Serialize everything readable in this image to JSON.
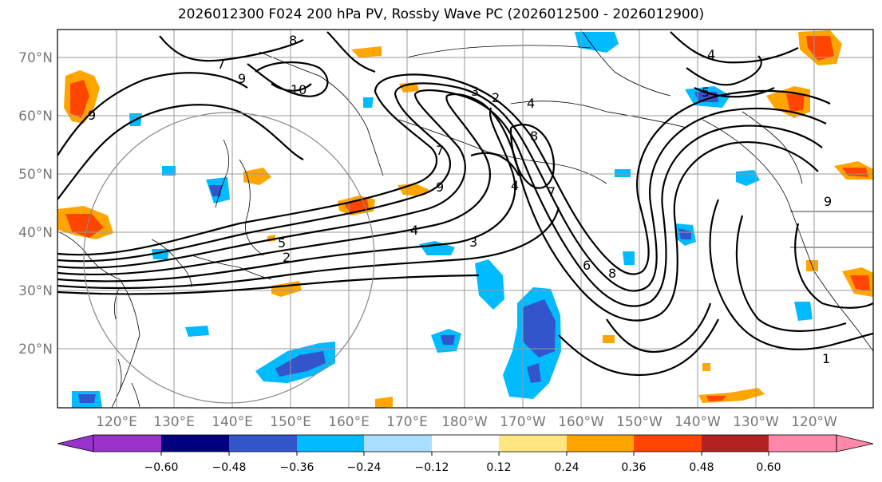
{
  "title": "2026012300 F024 200 hPa PV, Rossby Wave PC (2026012500 - 2026012900)",
  "lat_labels": [
    "70°N",
    "60°N",
    "50°N",
    "40°N",
    "30°N",
    "20°N"
  ],
  "lon_labels": [
    "120°E",
    "130°E",
    "140°E",
    "150°E",
    "160°E",
    "170°E",
    "180°W",
    "170°W",
    "160°W",
    "150°W",
    "140°W",
    "130°W",
    "120°W"
  ],
  "colorbar": {
    "colors": [
      "#9933cc",
      "#000080",
      "#3355cc",
      "#00bbff",
      "#aaddff",
      "#ffffff",
      "#ffe680",
      "#ffa500",
      "#ff4500",
      "#b22222",
      "#ff88aa"
    ],
    "labels": [
      "−0.60",
      "−0.48",
      "−0.36",
      "−0.24",
      "−0.12",
      "0.12",
      "0.24",
      "0.36",
      "0.48",
      "0.60"
    ]
  },
  "contour_labels": [
    "8",
    "7",
    "9",
    "10",
    "9",
    "7",
    "3",
    "2",
    "4",
    "4",
    "5",
    "8",
    "9",
    "4",
    "7",
    "5",
    "2",
    "4",
    "3",
    "6",
    "8",
    "9",
    "1"
  ],
  "colors": {
    "contour": "#000000",
    "grid": "#999999",
    "circle": "#888888"
  }
}
